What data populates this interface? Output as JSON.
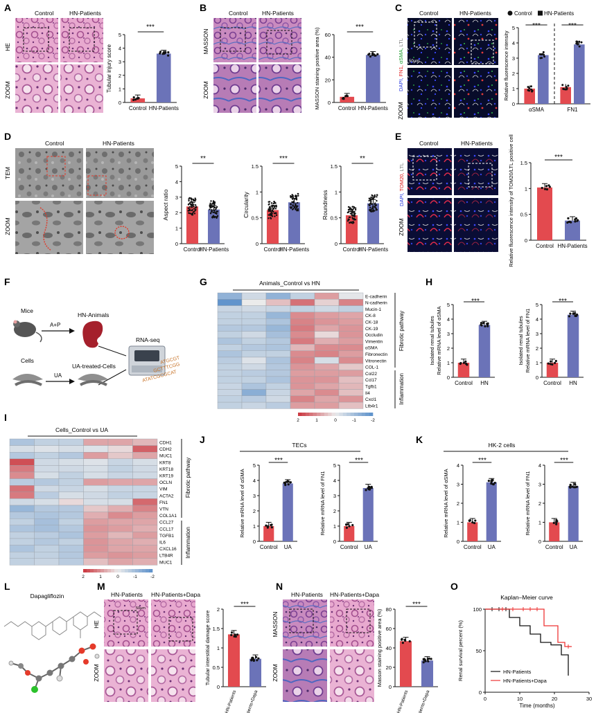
{
  "colors": {
    "red": "#e34a4f",
    "blue": "#6b73b8",
    "he_pink": "#d98cbd",
    "masson_purple": "#8a5aa8",
    "if_dark": "#0b1030",
    "tem_gray": "#8d8d8d",
    "heat_red": "#d0444c",
    "heat_blue": "#6a95c8"
  },
  "panels": {
    "A": {
      "letter": "A",
      "label_control": "Control",
      "label_hn": "HN-Patients",
      "row_he": "HE",
      "row_zoom": "ZOOM",
      "sig": "***"
    },
    "B": {
      "letter": "B",
      "label_control": "Control",
      "label_hn": "HN-Patients",
      "row_masson": "MASSON",
      "row_zoom": "ZOOM",
      "sig": "***"
    },
    "C": {
      "letter": "C",
      "label_control": "Control",
      "label_hn": "HN-Patients",
      "stain_dapi": "DAPI,",
      "stain_fn1": "FN1,",
      "stain_asma": "αSMA,",
      "stain_ltl": "LTL",
      "scale": "50μm",
      "row_zoom": "ZOOM",
      "legend_control": "Control",
      "legend_hn": "HN-Patients",
      "sig1": "***",
      "sig2": "***"
    },
    "D": {
      "letter": "D",
      "label_control": "Control",
      "label_hn": "HN-Patients",
      "row_tem": "TEM",
      "row_zoom": "ZOOM",
      "sig1": "**",
      "sig2": "***",
      "sig3": "**"
    },
    "E": {
      "letter": "E",
      "label_control": "Control",
      "label_hn": "HN-Patients",
      "stain_dapi": "DAPI,",
      "stain_tom": "TOM20,",
      "stain_ltl": "LTL",
      "row_zoom": "ZOOM",
      "sig": "***"
    },
    "F": {
      "letter": "F",
      "mice": "Mice",
      "ap": "A+P",
      "hn_animals": "HN-Animals",
      "rnaseq": "RNA-seq",
      "cells": "Cells",
      "ua": "UA",
      "ua_cells": "UA-treated-Cells",
      "seq1": "ATGCGT",
      "seq2": "GCTTTCGG",
      "seq3": "ATATCGCGCAT"
    },
    "G": {
      "letter": "G",
      "title": "Animals_Control vs HN",
      "group1": "Fibrotic pathway",
      "group2": "Inflammation",
      "genes": [
        "E-cadherin",
        "N-cadherin",
        "Mucin-1",
        "CK-8",
        "CK-18",
        "CK-19",
        "Occludin",
        "Vimentin",
        "αSMA",
        "Fibronectin",
        "Vitronectin",
        "COL-1",
        "Col22",
        "Ccl17",
        "Tgfb1",
        "Il4",
        "Cxcl1",
        "Ltb4r1"
      ],
      "scale_labels": [
        "2",
        "1",
        "0",
        "-1",
        "-2"
      ]
    },
    "H": {
      "letter": "H",
      "y1": [
        "Isolated renal tubules",
        "Relative mRNA level of αSMA"
      ],
      "y2": [
        "Isolated renal tubules",
        "Relative mRNA level of FN1"
      ],
      "sig1": "***",
      "sig2": "***"
    },
    "I": {
      "letter": "I",
      "title": "Cells_Control vs UA",
      "group1": "Fibrotic pathway",
      "group2": "Inflammation",
      "genes": [
        "CDH1",
        "CDH2",
        "MUC1",
        "KRT8",
        "KRT18",
        "KRT19",
        "OCLN",
        "VIM",
        "ACTA2",
        "FN1",
        "VTN",
        "COL1A1",
        "CCL27",
        "CCL17",
        "TGFB1",
        "IL6",
        "CXCL16",
        "LTB4R",
        "MUC1"
      ],
      "scale_labels": [
        "2",
        "1",
        "0",
        "-1",
        "-2"
      ]
    },
    "J": {
      "letter": "J",
      "title": "TECs",
      "sig1": "***",
      "sig2": "***"
    },
    "K": {
      "letter": "K",
      "title": "HK-2 cells",
      "sig1": "***",
      "sig2": "***"
    },
    "L": {
      "letter": "L",
      "title": "Dapagliflozin"
    },
    "M": {
      "letter": "M",
      "label_hn": "HN-Patients",
      "label_dapa": "HN-Patients+Dapa",
      "row_he": "HE",
      "row_zoom": "ZOOM",
      "scale": "50μm",
      "sig": "***"
    },
    "N": {
      "letter": "N",
      "label_hn": "HN-Patients",
      "label_dapa": "HN-Patients+Dapa",
      "row_masson": "MASSON",
      "row_zoom": "ZOOM",
      "sig": "***"
    },
    "O": {
      "letter": "O",
      "title": "Kaplan–Meier curve",
      "legend1": "HN-Patients",
      "legend2": "HN-Patients+Dapa"
    }
  },
  "chart_data": [
    {
      "id": "A",
      "type": "bar",
      "categories": [
        "Control",
        "HN-Patients"
      ],
      "values": [
        0.3,
        3.6
      ],
      "ylabel": "Tubular injury score",
      "ylim": [
        0,
        5
      ],
      "yticks": [
        0,
        1,
        2,
        3,
        4,
        5
      ]
    },
    {
      "id": "B",
      "type": "bar",
      "categories": [
        "Control",
        "HN-Patients"
      ],
      "values": [
        5,
        42
      ],
      "ylabel": "MASSON staining positive area (%)",
      "ylim": [
        0,
        60
      ],
      "yticks": [
        0,
        20,
        40,
        60
      ]
    },
    {
      "id": "C",
      "type": "bar",
      "categories": [
        "αSMA",
        "FN1"
      ],
      "series": [
        {
          "name": "Control",
          "values": [
            1.0,
            1.1
          ]
        },
        {
          "name": "HN-Patients",
          "values": [
            3.2,
            3.9
          ]
        }
      ],
      "ylabel": "Relative fluorescence intensity",
      "ylim": [
        0,
        5
      ],
      "yticks": [
        0,
        1,
        2,
        3,
        4,
        5
      ]
    },
    {
      "id": "D1",
      "type": "bar",
      "categories": [
        "Control",
        "HN-Patients"
      ],
      "values": [
        2.4,
        2.2
      ],
      "ylabel": "Aspect ratio",
      "ylim": [
        0,
        5
      ],
      "yticks": [
        0,
        1,
        2,
        3,
        4,
        5
      ]
    },
    {
      "id": "D2",
      "type": "bar",
      "categories": [
        "Control",
        "HN-Patients"
      ],
      "values": [
        0.65,
        0.8
      ],
      "ylabel": "Circularity",
      "ylim": [
        0,
        1.5
      ],
      "yticks": [
        0,
        0.5,
        1.0,
        1.5
      ]
    },
    {
      "id": "D3",
      "type": "bar",
      "categories": [
        "Control",
        "HN-Patients"
      ],
      "values": [
        0.55,
        0.78
      ],
      "ylabel": "Roundness",
      "ylim": [
        0,
        1.5
      ],
      "yticks": [
        0,
        0.5,
        1.0,
        1.5
      ]
    },
    {
      "id": "E",
      "type": "bar",
      "categories": [
        "Control",
        "HN-Patients"
      ],
      "values": [
        1.02,
        0.38
      ],
      "ylabel": "Relative fluorescence intensity of TOM20/LTL positive cell",
      "ylim": [
        0,
        1.5
      ],
      "yticks": [
        0,
        0.5,
        1.0,
        1.5
      ]
    },
    {
      "id": "H1",
      "type": "bar",
      "categories": [
        "Control",
        "HN"
      ],
      "values": [
        1.0,
        3.6
      ],
      "ylabel": "Relative mRNA level of αSMA",
      "ylim": [
        0,
        5
      ],
      "yticks": [
        0,
        1,
        2,
        3,
        4,
        5
      ]
    },
    {
      "id": "H2",
      "type": "bar",
      "categories": [
        "Control",
        "HN"
      ],
      "values": [
        1.0,
        4.3
      ],
      "ylabel": "Relative mRNA level of FN1",
      "ylim": [
        0,
        5
      ],
      "yticks": [
        0,
        1,
        2,
        3,
        4,
        5
      ]
    },
    {
      "id": "J1",
      "type": "bar",
      "categories": [
        "Control",
        "UA"
      ],
      "values": [
        1.0,
        3.8
      ],
      "ylabel": "Relative mRNA level of αSMA",
      "ylim": [
        0,
        5
      ],
      "yticks": [
        0,
        1,
        2,
        3,
        4,
        5
      ]
    },
    {
      "id": "J2",
      "type": "bar",
      "categories": [
        "Control",
        "UA"
      ],
      "values": [
        1.0,
        3.5
      ],
      "ylabel": "Relative mRNA level of FN1",
      "ylim": [
        0,
        5
      ],
      "yticks": [
        0,
        1,
        2,
        3,
        4,
        5
      ]
    },
    {
      "id": "K1",
      "type": "bar",
      "categories": [
        "Control",
        "UA"
      ],
      "values": [
        1.0,
        3.1
      ],
      "ylabel": "Relative mRNA level of αSMA",
      "ylim": [
        0,
        4
      ],
      "yticks": [
        0,
        1,
        2,
        3,
        4
      ]
    },
    {
      "id": "K2",
      "type": "bar",
      "categories": [
        "Control",
        "UA"
      ],
      "values": [
        1.0,
        2.9
      ],
      "ylabel": "Relative mRNA level of FN1",
      "ylim": [
        0,
        4
      ],
      "yticks": [
        0,
        1,
        2,
        3,
        4
      ]
    },
    {
      "id": "M",
      "type": "bar",
      "categories": [
        "HN-Patients",
        "HN-Patients+Dapa"
      ],
      "values": [
        1.35,
        0.72
      ],
      "ylabel": "Tubular interstitial damage score",
      "ylim": [
        0,
        2.0
      ],
      "yticks": [
        0,
        0.5,
        1.0,
        1.5,
        2.0
      ]
    },
    {
      "id": "N",
      "type": "bar",
      "categories": [
        "HN-Patients",
        "HN-Patients+Dapa"
      ],
      "values": [
        47,
        27
      ],
      "ylabel": "Masson staining positive area (%)",
      "ylim": [
        0,
        80
      ],
      "yticks": [
        0,
        20,
        40,
        60,
        80
      ]
    },
    {
      "id": "O",
      "type": "line",
      "title": "Kaplan–Meier curve",
      "xlabel": "Time (months)",
      "ylabel": "Renal survival percent (%)",
      "xlim": [
        0,
        30
      ],
      "ylim": [
        0,
        100
      ],
      "xticks": [
        0,
        10,
        20,
        30
      ],
      "yticks": [
        0,
        50,
        100
      ],
      "series": [
        {
          "name": "HN-Patients",
          "steps": [
            [
              0,
              100
            ],
            [
              7,
              100
            ],
            [
              7,
              90
            ],
            [
              10,
              90
            ],
            [
              10,
              80
            ],
            [
              13,
              80
            ],
            [
              13,
              70
            ],
            [
              16,
              70
            ],
            [
              16,
              60
            ],
            [
              19,
              60
            ],
            [
              19,
              57
            ],
            [
              22,
              57
            ],
            [
              22,
              45
            ],
            [
              24,
              45
            ],
            [
              24,
              20
            ]
          ]
        },
        {
          "name": "HN-Patients+Dapa",
          "steps": [
            [
              0,
              100
            ],
            [
              17,
              100
            ],
            [
              17,
              80
            ],
            [
              21,
              80
            ],
            [
              21,
              60
            ],
            [
              23,
              60
            ],
            [
              23,
              55
            ],
            [
              25,
              55
            ]
          ]
        }
      ]
    }
  ],
  "heatmap_G": [
    [
      -1.3,
      -0.4,
      -1.3,
      -0.6,
      0.9,
      -0.1
    ],
    [
      -2,
      0,
      0.5,
      1.4,
      0.3,
      1.2
    ],
    [
      -0.5,
      -0.4,
      -0.5,
      -0.6,
      -0.4,
      -0.6
    ],
    [
      -0.6,
      -0.6,
      -1.2,
      1.1,
      0.9,
      0.8
    ],
    [
      -0.6,
      -0.6,
      -0.9,
      1.2,
      1.0,
      0.9
    ],
    [
      -0.8,
      -0.8,
      -1.2,
      1.3,
      0.8,
      1.0
    ],
    [
      -0.6,
      -0.4,
      -1.0,
      1.1,
      0.2,
      1.0
    ],
    [
      -0.9,
      -0.6,
      -0.8,
      1.3,
      0.7,
      0.9
    ],
    [
      -0.6,
      -0.8,
      -0.9,
      0.6,
      1.1,
      1.1
    ],
    [
      -0.9,
      -0.6,
      -0.6,
      1.1,
      1.2,
      0.9
    ],
    [
      -0.7,
      -0.2,
      -0.9,
      1.2,
      -0.3,
      1.1
    ],
    [
      -0.6,
      -0.4,
      -0.8,
      1.0,
      0.8,
      0.4
    ],
    [
      -0.6,
      -0.7,
      -0.8,
      0.9,
      0.9,
      0.9
    ],
    [
      -0.6,
      -0.6,
      -0.9,
      1.0,
      1.0,
      0.5
    ],
    [
      -0.5,
      -0.9,
      -0.6,
      1.0,
      0.8,
      0.6
    ],
    [
      -0.5,
      -1.4,
      -0.5,
      0.8,
      1.1,
      0.5
    ],
    [
      -0.6,
      -0.7,
      -0.4,
      1.2,
      0.8,
      1.0
    ],
    [
      -0.6,
      -0.5,
      -0.7,
      0.9,
      0.9,
      0.5
    ]
  ],
  "heatmap_I": [
    [
      -0.9,
      -0.6,
      -0.6,
      0.8,
      0.8,
      0.6
    ],
    [
      -0.3,
      -0.2,
      -0.3,
      -0.2,
      0.2,
      1.6
    ],
    [
      -0.8,
      -0.6,
      -0.8,
      0.9,
      0.4,
      0.8
    ],
    [
      1.8,
      -0.4,
      -0.3,
      -0.2,
      -0.5,
      -0.3
    ],
    [
      1.3,
      -0.4,
      -0.4,
      -0.3,
      -0.6,
      -0.4
    ],
    [
      1.1,
      -0.3,
      -0.6,
      -0.3,
      -0.5,
      -0.4
    ],
    [
      -0.7,
      -0.8,
      -0.6,
      0.9,
      0.8,
      0.8
    ],
    [
      1.4,
      -0.4,
      -0.5,
      -0.3,
      -0.5,
      -0.5
    ],
    [
      1.3,
      -0.7,
      -0.3,
      -0.4,
      -0.6,
      -0.5
    ],
    [
      -0.4,
      -0.3,
      0.2,
      -0.3,
      -0.3,
      1.5
    ],
    [
      -1.2,
      -0.8,
      -0.8,
      0.4,
      0.7,
      1.2
    ],
    [
      -0.8,
      -0.9,
      -0.8,
      0.7,
      1.1,
      0.9
    ],
    [
      -0.6,
      -1.0,
      -0.6,
      0.9,
      0.8,
      0.8
    ],
    [
      -0.9,
      -1.0,
      -0.8,
      1.0,
      0.9,
      0.7
    ],
    [
      -0.6,
      -0.7,
      -0.9,
      0.9,
      0.6,
      0.9
    ],
    [
      -0.6,
      -0.8,
      -0.6,
      1.0,
      0.8,
      0.7
    ],
    [
      -0.9,
      -0.6,
      -0.8,
      1.0,
      0.8,
      0.8
    ],
    [
      -0.6,
      -0.6,
      -0.8,
      0.9,
      1.0,
      0.9
    ],
    [
      -0.6,
      -0.5,
      -0.7,
      0.5,
      0.8,
      0.7
    ]
  ]
}
